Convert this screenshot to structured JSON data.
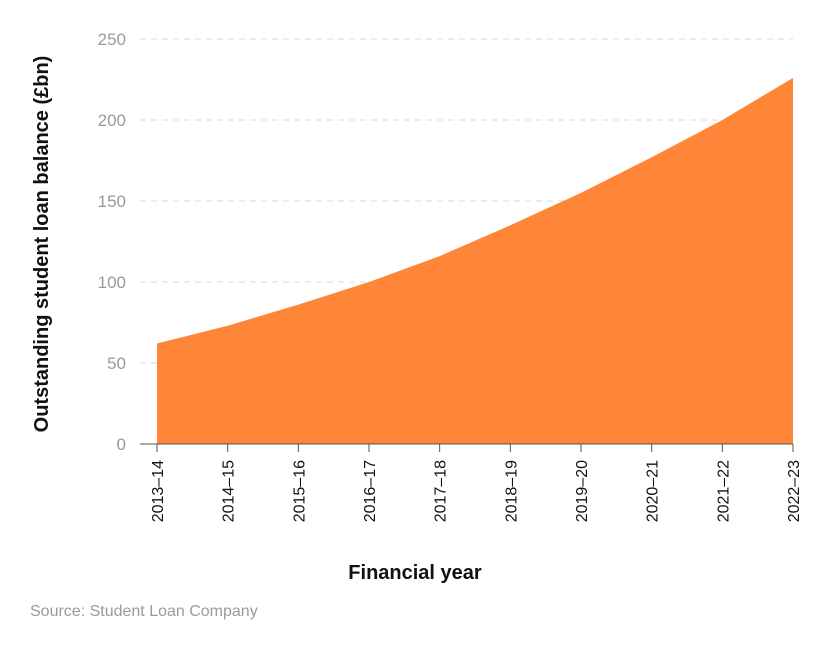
{
  "source": "Source: Student Loan Company",
  "chart_data": {
    "type": "area",
    "categories": [
      "2013–14",
      "2014–15",
      "2015–16",
      "2016–17",
      "2017–18",
      "2018–19",
      "2019–20",
      "2020–21",
      "2021–22",
      "2022–23"
    ],
    "values": [
      62,
      73,
      86,
      100,
      116,
      135,
      155,
      177,
      200,
      226
    ],
    "xlabel": "Financial year",
    "ylabel": "Outstanding student loan balance (£bn)",
    "ylim": [
      0,
      250
    ],
    "yticks": [
      0,
      50,
      100,
      150,
      200,
      250
    ],
    "grid": "horizontal dashed",
    "color": "#ff8638"
  }
}
